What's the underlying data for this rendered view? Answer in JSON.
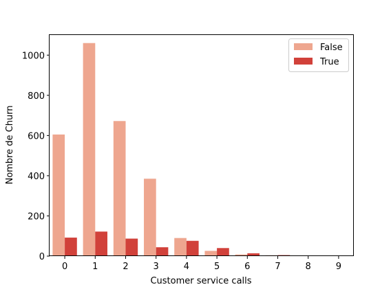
{
  "chart_data": {
    "type": "bar",
    "title": "",
    "xlabel": "Customer service calls",
    "ylabel": "Nombre de Churn",
    "categories": [
      "0",
      "1",
      "2",
      "3",
      "4",
      "5",
      "6",
      "7",
      "8",
      "9"
    ],
    "series": [
      {
        "name": "False",
        "color": "#eea68f",
        "values": [
          605,
          1060,
          672,
          385,
          90,
          26,
          8,
          4,
          1,
          0
        ]
      },
      {
        "name": "True",
        "color": "#d1413a",
        "values": [
          92,
          122,
          87,
          44,
          76,
          40,
          14,
          5,
          1,
          2
        ]
      }
    ],
    "ylim": [
      0,
      1100
    ],
    "yticks": [
      0,
      200,
      400,
      600,
      800,
      1000
    ],
    "grid": false,
    "legend_position": "top-right"
  }
}
